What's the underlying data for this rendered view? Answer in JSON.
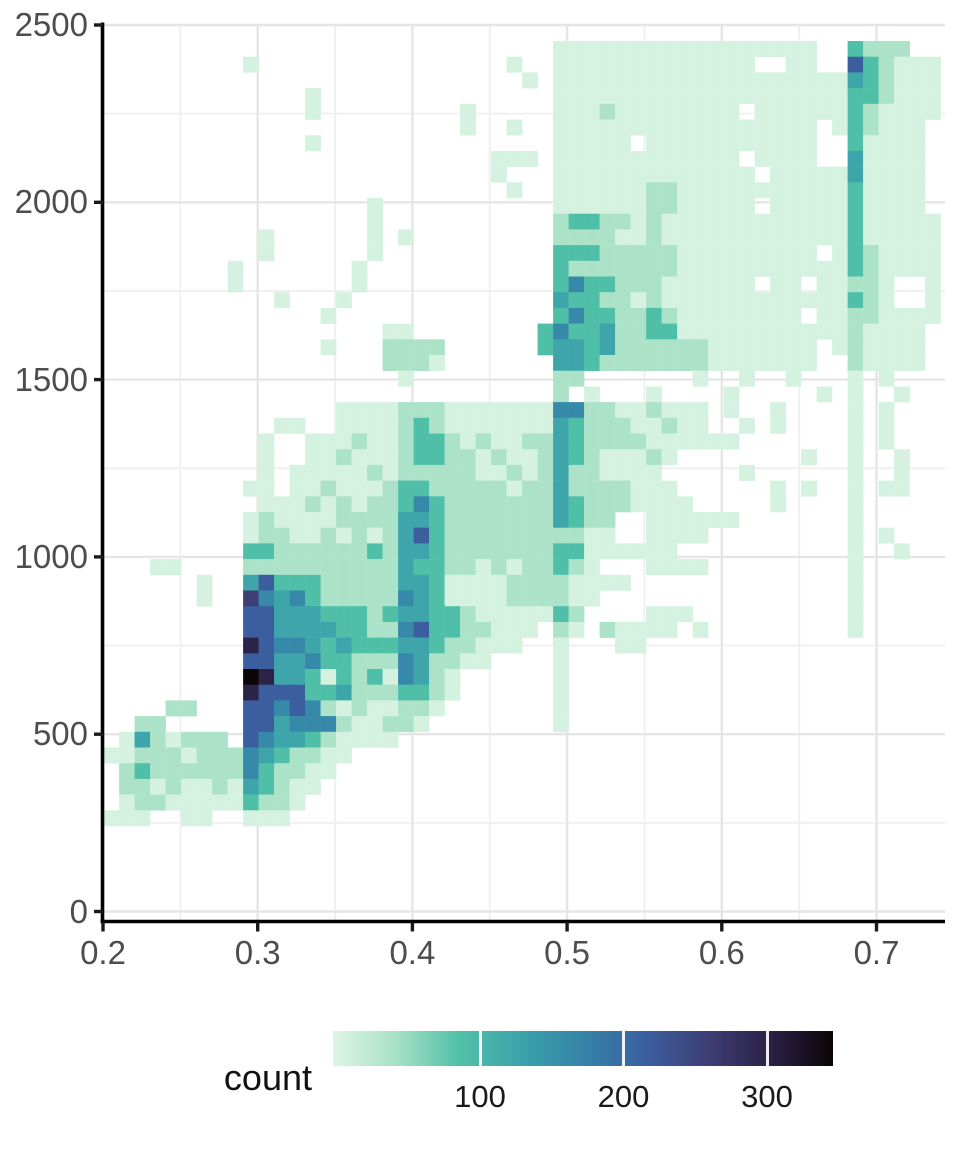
{
  "figure": {
    "background": "#FFFFFF"
  },
  "colors": {
    "axis_text": "#4D4D4D",
    "legend_text": "#1A1A1A",
    "legend_title_text": "#111111",
    "axis_line": "#000000",
    "tick_mark": "#1A1A1A",
    "grid_major": "#E5E5E5",
    "grid_minor": "#F0F0F0",
    "scale_stops": [
      [
        0.0,
        "#DEF5E5"
      ],
      [
        0.125,
        "#A8E1C6"
      ],
      [
        0.25,
        "#52C1A8"
      ],
      [
        0.375,
        "#3BA3AA"
      ],
      [
        0.5,
        "#3584A8"
      ],
      [
        0.625,
        "#3B5FA0"
      ],
      [
        0.75,
        "#3D3E75"
      ],
      [
        0.875,
        "#2B2145"
      ],
      [
        1.0,
        "#0B0508"
      ]
    ]
  },
  "chart_data": {
    "type": "heatmap",
    "subtype": "bin2d-histogram",
    "title": "",
    "xlabel": "",
    "ylabel": "",
    "grid": true,
    "x_ticks": [
      0.2,
      0.3,
      0.4,
      0.5,
      0.6,
      0.7
    ],
    "x_tick_labels": [
      "0.2",
      "0.3",
      "0.4",
      "0.5",
      "0.6",
      "0.7"
    ],
    "x_minor_ticks": [
      0.25,
      0.35,
      0.45,
      0.55,
      0.65
    ],
    "y_ticks": [
      0,
      500,
      1000,
      1500,
      2000,
      2500
    ],
    "y_tick_labels": [
      "0",
      "500",
      "1000",
      "1500",
      "2000",
      "2500"
    ],
    "y_minor_ticks": [
      250,
      750,
      1250,
      1750,
      2250
    ],
    "x_range": [
      0.2,
      0.745
    ],
    "y_range": [
      0,
      2500
    ],
    "legend": {
      "title": "count",
      "position": "bottom",
      "tick_values": [
        100,
        200,
        300
      ],
      "tick_labels": [
        "100",
        "200",
        "300"
      ],
      "domain_min": 0,
      "domain_max": 346
    },
    "bins": {
      "cols": 54,
      "rows": 50,
      "x_first_bin_center": 0.2055,
      "x_bin_width": 0.01,
      "y_first_bin_center": 2433,
      "y_bin_step": -44.3
    },
    "intensity_to_count": [
      0,
      7,
      40,
      90,
      125,
      166,
      218,
      260,
      300,
      346
    ],
    "grid_note": "rows listed top (y=2433) to bottom (y=262); each char is one x-bin from x=0.2055 to 0.7355; digit 0-9 indexes intensity_to_count",
    "grid_rows": [
      "000000000000000000000000000001111111111111111100322200",
      "000000000100000000000000001001111111111111001100632111",
      "000000000000000000000000000101111111111111111111432111",
      "000000000000010000000000000001111111111111111111332111",
      "000000000000010000000001000001112111111110111111321111",
      "000000000000000000000001001001111111111111111101321110",
      "000000000000010000000000000001111101111111111100311110",
      "000000000000000000000000011101111111111110111100411110",
      "000000000000000000000000010001111111111111011111411110",
      "000000000000000000000000001001111112211111111111311110",
      "000000000000000001000000000001111112211111011111311110",
      "000000000000000001000000000002332212111111111111311111",
      "000000000010000001010000000002222112111111111111311111",
      "000000000010000001000000000003332222211111111101321111",
      "000000001000000010000000000003222222211111111111321111",
      "000000001000000010000000000003533222111111011011221001",
      "000000000001000100000000000004332212111111111111321001",
      "000000000000001000000000000003533223211111111011221111",
      "000000000000000000110000000035334223311111111111211110",
      "000000000000001000222200000034434222222111111101211110",
      "000000000000000000222100000004432222222111111100211110",
      "000000000000000000010000000002200000001001001000101000",
      "000000000000000000000000000002010001000010000010100100",
      "000000000000000111122211111115522112111010010000101000",
      "000000000001100111123211111114322211211001010000101000",
      "000000000010011121123321211224322221111110000000101000",
      "000000000010011211123322121124321112100000000100100100",
      "000000000010111112122222112124221111000001000000100100",
      "000000000110112111233222221224222211100000010100101100",
      "000000000011121212235322222224322211110000010000100000",
      "000000000121111222244322222224322001111110000000100000",
      "000000000122112121246322222222211001111000000000101000",
      "000000000332222223244322222223311111100000000000100100",
      "000110000222222222243322121223210001111000000000100000",
      "000000100463332222244311112222111100000000000000100000",
      "000000100754532222254311112222110000000000000000100000",
      "000000000664443332344332111113200001110000000000100000",
      "000000000664444332256332211102102111101000000000100000",
      "000000000865543433344322111001000110000000000000000000",
      "000000000664453322254221100001000000000000000000000000",
      "000000000984431323154210000001000000000000000000000000",
      "000000000866633422233210000001000000000000000000000000",
      "000022000665652121122100000001000000000000000000000000",
      "002200000664555211221000000001000000000000000000000000",
      "014212220654432111100000000000000000000000000000000000",
      "112221222543221100000000000000000000000000000000000000",
      "023222222532211000000000000000000000000000000000000000",
      "022121121432110000000000000000000000000000000000000000",
      "012211111322100000000000000000000000000000000000000000",
      "111001100111000000000000000000000000000000000000000000"
    ]
  }
}
